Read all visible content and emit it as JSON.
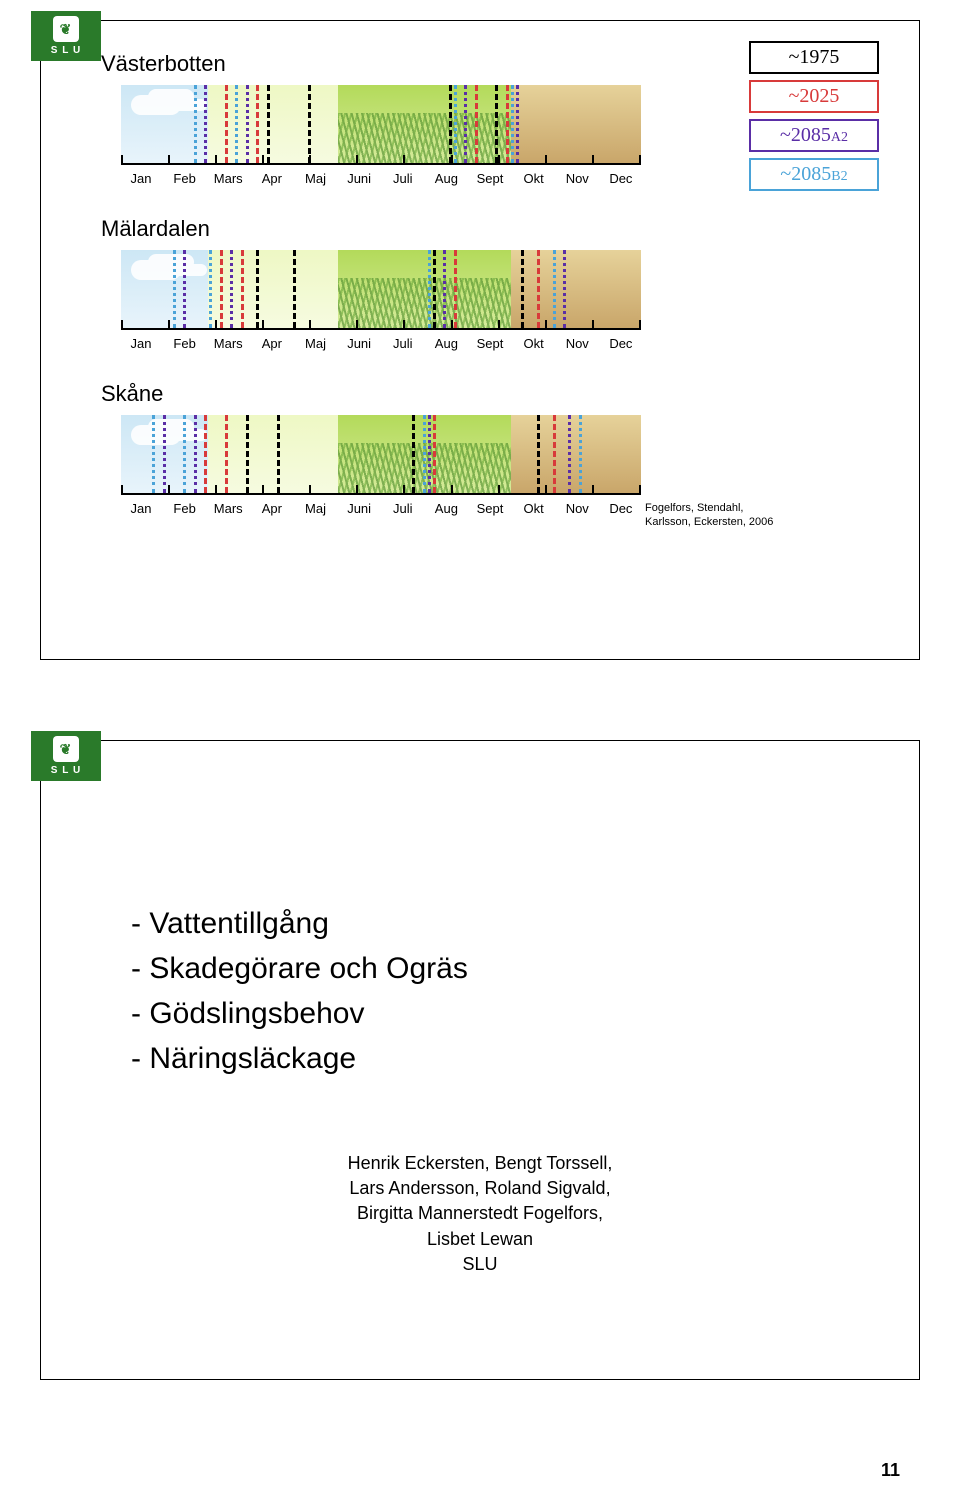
{
  "badge": "S L U",
  "regions": [
    "Västerbotten",
    "Mälardalen",
    "Skåne"
  ],
  "months": [
    "Jan",
    "Feb",
    "Mars",
    "Apr",
    "Maj",
    "Juni",
    "Juli",
    "Aug",
    "Sept",
    "Okt",
    "Nov",
    "Dec"
  ],
  "legend": [
    {
      "label": "~1975",
      "suffix": "",
      "border": "#000000",
      "text": "#000000"
    },
    {
      "label": "~2025",
      "suffix": "",
      "border": "#d83a3a",
      "text": "#d83a3a"
    },
    {
      "label": "~2085",
      "suffix": "A2",
      "border": "#5a2ea6",
      "text": "#5a2ea6"
    },
    {
      "label": "~2085",
      "suffix": "B2",
      "border": "#4aa3d8",
      "text": "#4aa3d8"
    }
  ],
  "citation": [
    "Fogelfors, Stendahl,",
    "Karlsson, Eckersten, 2006"
  ],
  "colors": {
    "c1975": "#000000",
    "c2025": "#d83a3a",
    "c2085a2": "#5a2ea6",
    "c2085b2": "#4aa3d8"
  },
  "timelines": {
    "vasterbotten": {
      "lines": [
        {
          "pos": 14,
          "color": "#4aa3d8",
          "style": "dot"
        },
        {
          "pos": 16,
          "color": "#5a2ea6",
          "style": "dot"
        },
        {
          "pos": 20,
          "color": "#d83a3a",
          "style": "dashed"
        },
        {
          "pos": 22,
          "color": "#4aa3d8",
          "style": "dot"
        },
        {
          "pos": 24,
          "color": "#5a2ea6",
          "style": "dot"
        },
        {
          "pos": 26,
          "color": "#d83a3a",
          "style": "dashed"
        },
        {
          "pos": 28,
          "color": "#000000",
          "style": "dashed"
        },
        {
          "pos": 36,
          "color": "#000000",
          "style": "dashed"
        },
        {
          "pos": 63,
          "color": "#000000",
          "style": "dashed"
        },
        {
          "pos": 64,
          "color": "#4aa3d8",
          "style": "dot"
        },
        {
          "pos": 66,
          "color": "#5a2ea6",
          "style": "dot"
        },
        {
          "pos": 68,
          "color": "#d83a3a",
          "style": "dashed"
        },
        {
          "pos": 72,
          "color": "#000000",
          "style": "dashed"
        },
        {
          "pos": 74,
          "color": "#d83a3a",
          "style": "dashed"
        },
        {
          "pos": 75,
          "color": "#4aa3d8",
          "style": "dot"
        },
        {
          "pos": 76,
          "color": "#5a2ea6",
          "style": "dot"
        }
      ]
    },
    "malardalen": {
      "lines": [
        {
          "pos": 10,
          "color": "#4aa3d8",
          "style": "dot"
        },
        {
          "pos": 12,
          "color": "#5a2ea6",
          "style": "dot"
        },
        {
          "pos": 17,
          "color": "#4aa3d8",
          "style": "dot"
        },
        {
          "pos": 19,
          "color": "#d83a3a",
          "style": "dashed"
        },
        {
          "pos": 21,
          "color": "#5a2ea6",
          "style": "dot"
        },
        {
          "pos": 23,
          "color": "#d83a3a",
          "style": "dashed"
        },
        {
          "pos": 26,
          "color": "#000000",
          "style": "dashed"
        },
        {
          "pos": 33,
          "color": "#000000",
          "style": "dashed"
        },
        {
          "pos": 59,
          "color": "#4aa3d8",
          "style": "dot"
        },
        {
          "pos": 60,
          "color": "#000000",
          "style": "dashed"
        },
        {
          "pos": 62,
          "color": "#5a2ea6",
          "style": "dot"
        },
        {
          "pos": 64,
          "color": "#d83a3a",
          "style": "dashed"
        },
        {
          "pos": 77,
          "color": "#000000",
          "style": "dashed"
        },
        {
          "pos": 80,
          "color": "#d83a3a",
          "style": "dashed"
        },
        {
          "pos": 83,
          "color": "#4aa3d8",
          "style": "dot"
        },
        {
          "pos": 85,
          "color": "#5a2ea6",
          "style": "dot"
        }
      ]
    },
    "skane": {
      "lines": [
        {
          "pos": 6,
          "color": "#4aa3d8",
          "style": "dot"
        },
        {
          "pos": 8,
          "color": "#5a2ea6",
          "style": "dot"
        },
        {
          "pos": 12,
          "color": "#4aa3d8",
          "style": "dot"
        },
        {
          "pos": 14,
          "color": "#5a2ea6",
          "style": "dot"
        },
        {
          "pos": 16,
          "color": "#d83a3a",
          "style": "dashed"
        },
        {
          "pos": 20,
          "color": "#d83a3a",
          "style": "dashed"
        },
        {
          "pos": 24,
          "color": "#000000",
          "style": "dashed"
        },
        {
          "pos": 30,
          "color": "#000000",
          "style": "dashed"
        },
        {
          "pos": 56,
          "color": "#000000",
          "style": "dashed"
        },
        {
          "pos": 58,
          "color": "#4aa3d8",
          "style": "dot"
        },
        {
          "pos": 59,
          "color": "#5a2ea6",
          "style": "dot"
        },
        {
          "pos": 60,
          "color": "#d83a3a",
          "style": "dashed"
        },
        {
          "pos": 80,
          "color": "#000000",
          "style": "dashed"
        },
        {
          "pos": 83,
          "color": "#d83a3a",
          "style": "dashed"
        },
        {
          "pos": 86,
          "color": "#5a2ea6",
          "style": "dot"
        },
        {
          "pos": 88,
          "color": "#4aa3d8",
          "style": "dot"
        }
      ]
    }
  },
  "slide2": {
    "bullets": [
      "- Vattentillgång",
      "- Skadegörare och Ogräs",
      "- Gödslingsbehov",
      "- Näringsläckage"
    ],
    "authors": [
      "Henrik Eckersten, Bengt Torssell,",
      "Lars Andersson, Roland Sigvald,",
      "Birgitta Mannerstedt Fogelfors,",
      "Lisbet Lewan",
      "SLU"
    ]
  },
  "pageNumber": "11"
}
